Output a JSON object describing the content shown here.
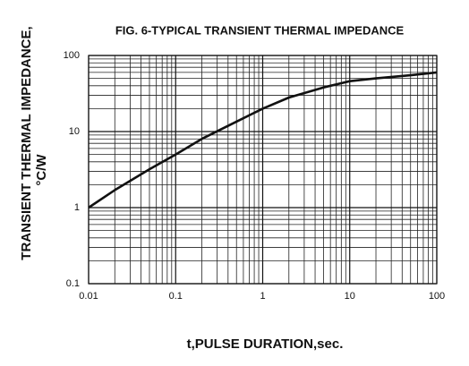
{
  "chart_data": {
    "type": "line",
    "title": "FIG. 6-TYPICAL TRANSIENT THERMAL IMPEDANCE",
    "x_label": "t,PULSE DURATION,sec.",
    "y_label": [
      "TRANSIENT THERMAL IMPEDANCE,",
      "°C/W"
    ],
    "x": [
      0.01,
      0.02,
      0.05,
      0.1,
      0.2,
      0.5,
      1,
      2,
      5,
      10,
      20,
      50,
      100
    ],
    "series": [
      {
        "name": "Transient thermal impedance",
        "color": "#111111",
        "values": [
          1,
          1.7,
          3.2,
          5,
          8,
          13.5,
          20,
          28,
          38,
          46,
          50,
          55,
          60
        ]
      }
    ],
    "xlim": [
      0.01,
      100
    ],
    "ylim": [
      0.1,
      100
    ],
    "xticks": [
      0.01,
      0.1,
      1,
      10,
      100
    ],
    "yticks": [
      0.1,
      1,
      10,
      100
    ],
    "xlog": true,
    "ylog": true,
    "grid": true,
    "minor_grid": true
  }
}
